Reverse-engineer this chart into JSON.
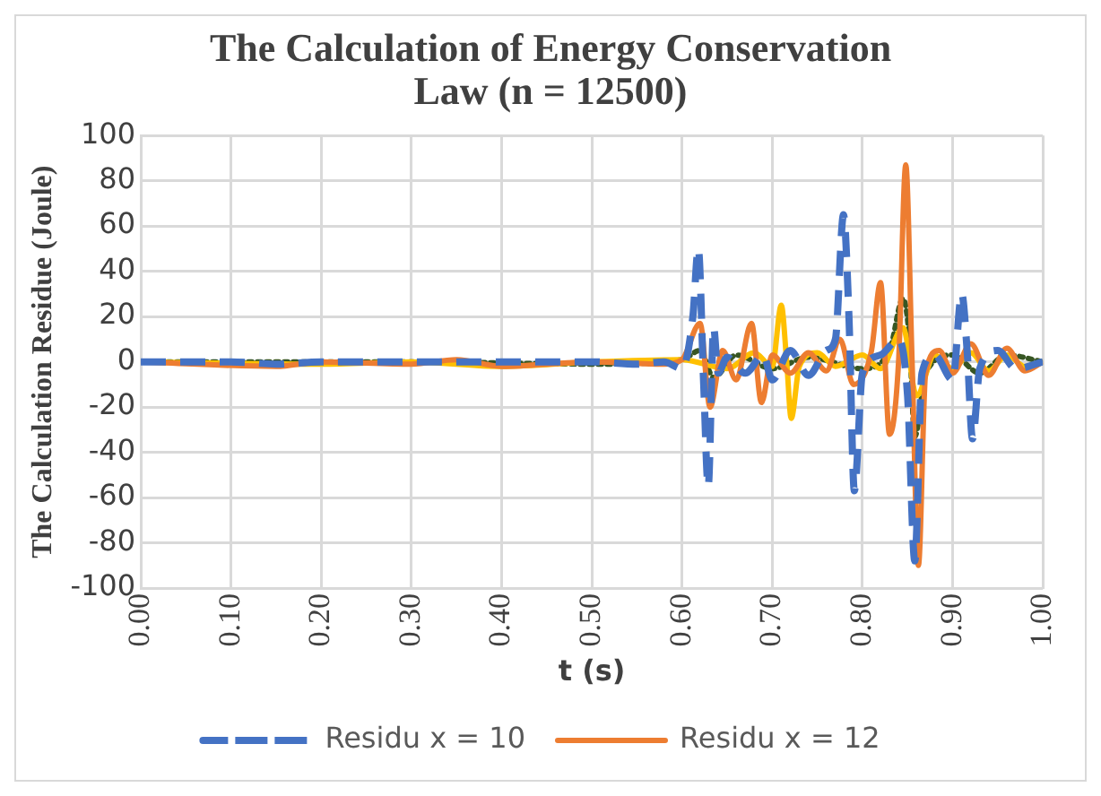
{
  "chart_data": {
    "type": "line",
    "title": "The Calculation of Energy Conservation Law (n = 12500)",
    "xlabel": "t (s)",
    "ylabel": "The Calculation Residue (Joule)",
    "xlim": [
      0,
      1
    ],
    "xticks": [
      {
        "value": 0,
        "label": "0.00"
      },
      {
        "value": 0.1,
        "label": "0.10"
      },
      {
        "value": 0.2,
        "label": "0.20"
      },
      {
        "value": 0.3,
        "label": "0.30"
      },
      {
        "value": 0.4,
        "label": "0.40"
      },
      {
        "value": 0.5,
        "label": "0.50"
      },
      {
        "value": 0.6,
        "label": "0.60"
      },
      {
        "value": 0.7,
        "label": "0.70"
      },
      {
        "value": 0.8,
        "label": "0.80"
      },
      {
        "value": 0.9,
        "label": "0.90"
      },
      {
        "value": 1,
        "label": "1.00"
      }
    ],
    "ylim": [
      -100,
      100
    ],
    "yticks": [
      -100,
      -80,
      -60,
      -40,
      -20,
      0,
      20,
      40,
      60,
      80,
      100
    ],
    "grid": true,
    "legend": "bottom",
    "marker": "none",
    "series": [
      {
        "name": "Residu x = 10",
        "color": "#4472c4",
        "line_style": "dashed",
        "x": [
          0,
          0.1,
          0.15,
          0.2,
          0.3,
          0.4,
          0.5,
          0.55,
          0.58,
          0.6,
          0.612,
          0.618,
          0.624,
          0.629,
          0.635,
          0.64,
          0.65,
          0.67,
          0.69,
          0.7,
          0.72,
          0.74,
          0.76,
          0.77,
          0.779,
          0.785,
          0.791,
          0.8,
          0.82,
          0.84,
          0.85,
          0.858,
          0.866,
          0.88,
          0.9,
          0.91,
          0.916,
          0.922,
          0.93,
          0.95,
          0.97,
          1
        ],
        "values": [
          0,
          0,
          -1,
          0,
          0,
          0,
          0,
          -1,
          0,
          -3,
          20,
          50,
          -10,
          -55,
          15,
          -5,
          2,
          -5,
          3,
          -8,
          5,
          -6,
          5,
          10,
          65,
          20,
          -57,
          -5,
          3,
          10,
          -15,
          -88,
          -5,
          3,
          -8,
          30,
          5,
          -34,
          -3,
          5,
          -3,
          0
        ]
      },
      {
        "name": "Residu x = 12",
        "color": "#ed7d31",
        "line_style": "solid",
        "x": [
          0,
          0.15,
          0.2,
          0.3,
          0.35,
          0.4,
          0.5,
          0.58,
          0.6,
          0.62,
          0.631,
          0.645,
          0.66,
          0.677,
          0.688,
          0.7,
          0.72,
          0.74,
          0.76,
          0.775,
          0.79,
          0.81,
          0.82,
          0.83,
          0.84,
          0.848,
          0.855,
          0.862,
          0.87,
          0.885,
          0.9,
          0.92,
          0.94,
          0.96,
          0.98,
          1
        ],
        "values": [
          0,
          -2,
          0,
          -1,
          1,
          -2,
          0,
          -1,
          1,
          17,
          -20,
          5,
          -8,
          17,
          -18,
          3,
          -5,
          4,
          -4,
          10,
          -10,
          5,
          35,
          -32,
          0,
          87,
          0,
          -90,
          -5,
          5,
          -5,
          8,
          -6,
          6,
          -4,
          0
        ]
      },
      {
        "color": "#ffc000",
        "line_style": "solid",
        "x": [
          0,
          0.2,
          0.3,
          0.4,
          0.5,
          0.6,
          0.65,
          0.68,
          0.7,
          0.71,
          0.716,
          0.721,
          0.73,
          0.75,
          0.77,
          0.8,
          0.82,
          0.845,
          0.86,
          0.88,
          0.9,
          0.92,
          0.94,
          0.96,
          0.98,
          1
        ],
        "values": [
          0,
          -1,
          0,
          -2,
          0,
          1,
          -3,
          4,
          -2,
          25,
          0,
          -25,
          -2,
          4,
          -2,
          3,
          -3,
          15,
          -15,
          3,
          -3,
          4,
          -4,
          3,
          -2,
          0
        ]
      },
      {
        "color": "#375623",
        "line_style": "dotted",
        "x": [
          0,
          0.3,
          0.5,
          0.6,
          0.62,
          0.635,
          0.66,
          0.7,
          0.74,
          0.8,
          0.83,
          0.845,
          0.852,
          0.858,
          0.87,
          0.9,
          0.93,
          0.96,
          1
        ],
        "values": [
          0,
          0,
          -1,
          1,
          5,
          -7,
          3,
          -3,
          2,
          -3,
          5,
          28,
          10,
          -33,
          -5,
          3,
          -5,
          3,
          0
        ]
      }
    ]
  }
}
